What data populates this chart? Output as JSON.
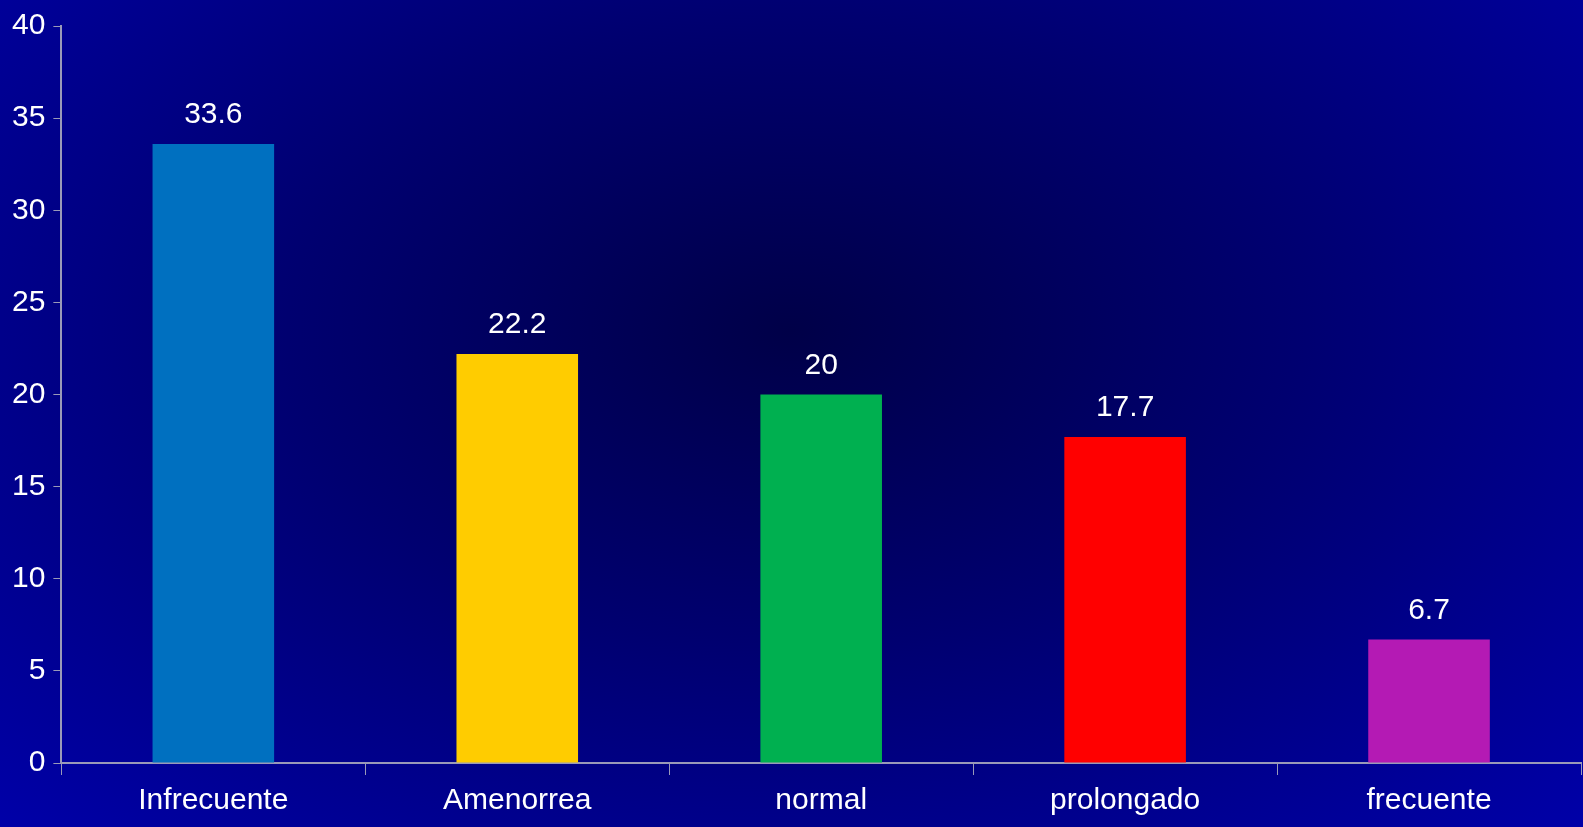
{
  "chart_data": {
    "type": "bar",
    "categories": [
      "Infrecuente",
      "Amenorrea",
      "normal",
      "prolongado",
      "frecuente"
    ],
    "values": [
      33.6,
      22.2,
      20,
      17.7,
      6.7
    ],
    "colors": [
      "#0070c0",
      "#ffcc00",
      "#00b050",
      "#ff0000",
      "#b41ab4"
    ],
    "ylim": [
      0,
      40
    ],
    "yticks": [
      0,
      5,
      10,
      15,
      20,
      25,
      30,
      35,
      40
    ],
    "grid": false,
    "legend": false,
    "data_labels": true
  }
}
